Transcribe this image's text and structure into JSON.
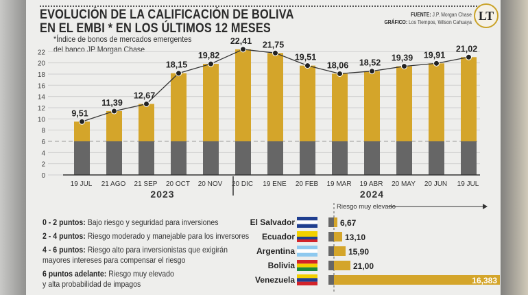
{
  "header": {
    "title_line1": "EVOLUCIÓN DE LA CALIFICACIÓN DE BOLIVA",
    "title_line2": "EN EL EMBI * EN LOS ÚLTIMOS 12 MESES",
    "source_label": "FUENTE:",
    "source": "J.P. Morgan Chase",
    "graphic_label": "GRÁFICO:",
    "graphic": "Los Tiempos, Wilson Cahuaya",
    "logo": "LT"
  },
  "note_line1": "*Índice de bonos de mercados emergentes",
  "note_line2": "del banco JP Morgan Chase",
  "colors": {
    "gold": "#d4a52a",
    "gray": "#666666",
    "line": "#333333"
  },
  "chart_data": [
    {
      "type": "bar",
      "categories": [
        "19 JUL",
        "21 AGO",
        "21 SEP",
        "20 OCT",
        "20 NOV",
        "20 DIC",
        "19 ENE",
        "20 FEB",
        "19 MAR",
        "19 ABR",
        "20 MAY",
        "20 JUN",
        "19 JUL"
      ],
      "values": [
        9.51,
        11.39,
        12.67,
        18.15,
        19.82,
        22.41,
        21.75,
        19.51,
        18.06,
        18.52,
        19.39,
        19.91,
        21.02
      ],
      "labels": [
        "9,51",
        "11,39",
        "12,67",
        "18,15",
        "19,82",
        "22,41",
        "21,75",
        "19,51",
        "18,06",
        "18,52",
        "19,39",
        "19,91",
        "21,02"
      ],
      "threshold": 6,
      "yticks": [
        0,
        2,
        4,
        6,
        8,
        10,
        12,
        14,
        16,
        18,
        20,
        22
      ],
      "ylim": [
        0,
        22
      ],
      "grid": true,
      "year_labels": [
        {
          "label": "2023",
          "from": 0,
          "to": 5
        },
        {
          "label": "2024",
          "from": 6,
          "to": 12
        }
      ]
    },
    {
      "type": "bar",
      "orientation": "horizontal",
      "header": "Riesgo muy elevado",
      "categories": [
        "El Salvador",
        "Ecuador",
        "Argentina",
        "Bolivia",
        "Venezuela"
      ],
      "values": [
        6.67,
        13.1,
        15.9,
        21.0,
        16383
      ],
      "labels": [
        "6,67",
        "13,10",
        "15,90",
        "21,00",
        "16,383"
      ]
    }
  ],
  "legend": [
    {
      "range": "0 - 2 puntos:",
      "text": "Bajo riesgo y seguridad para inversiones"
    },
    {
      "range": "2 - 4 puntos:",
      "text": "Riesgo moderado y manejable para los inversores"
    },
    {
      "range": "4 - 6 puntos:",
      "text": "Riesgo alto para inversionistas que exigirán",
      "text2": "mayores intereses para compensar el riesgo"
    },
    {
      "range": "6 puntos adelante:",
      "text": "Riesgo muy elevado",
      "text2": "y alta probabilidad de impagos"
    }
  ]
}
